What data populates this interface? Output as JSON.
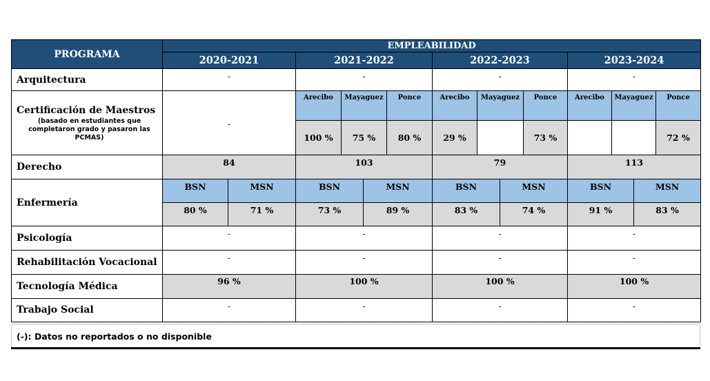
{
  "header": {
    "program": "PROGRAMA",
    "employability": "EMPLEABILIDAD",
    "years": [
      "2020-2021",
      "2021-2022",
      "2022-2023",
      "2023-2024"
    ]
  },
  "rows": {
    "arquitectura": {
      "name": "Arquitectura",
      "values": [
        "-",
        "-",
        "-",
        "-"
      ]
    },
    "certificacion": {
      "name": "Certificación de Maestros",
      "note": "(basado en estudiantes que completaron grado y pasaron las PCMAS)",
      "y2020": "-",
      "campuses": [
        "Arecibo",
        "Mayaguez",
        "Ponce"
      ],
      "y2021": [
        "100 %",
        "75 %",
        "80 %"
      ],
      "y2022": [
        "29 %",
        "",
        "73 %"
      ],
      "y2023": [
        "",
        "",
        "72 %"
      ]
    },
    "derecho": {
      "name": "Derecho",
      "values": [
        "84",
        "103",
        "79",
        "113"
      ]
    },
    "enfermeria": {
      "name": "Enfermería",
      "degrees": [
        "BSN",
        "MSN"
      ],
      "values": [
        [
          "80 %",
          "71 %"
        ],
        [
          "73 %",
          "89 %"
        ],
        [
          "83 %",
          "74 %"
        ],
        [
          "91 %",
          "83 %"
        ]
      ]
    },
    "psicologia": {
      "name": "Psicología",
      "values": [
        "-",
        "-",
        "-",
        "-"
      ]
    },
    "rehabilitacion": {
      "name": "Rehabilitación Vocacional",
      "values": [
        "-",
        "-",
        "-",
        "-"
      ]
    },
    "tecnologia": {
      "name": "Tecnología Médica",
      "values": [
        "96 %",
        "100 %",
        "100 %",
        "100 %"
      ]
    },
    "trabajo": {
      "name": "Trabajo Social",
      "values": [
        "-",
        "-",
        "-",
        "-"
      ]
    }
  },
  "footnote": "(-): Datos no reportados o no disponible",
  "colors": {
    "header": "#1f4e79",
    "light_blue": "#9dc3e6",
    "gray": "#d9d9d9"
  }
}
